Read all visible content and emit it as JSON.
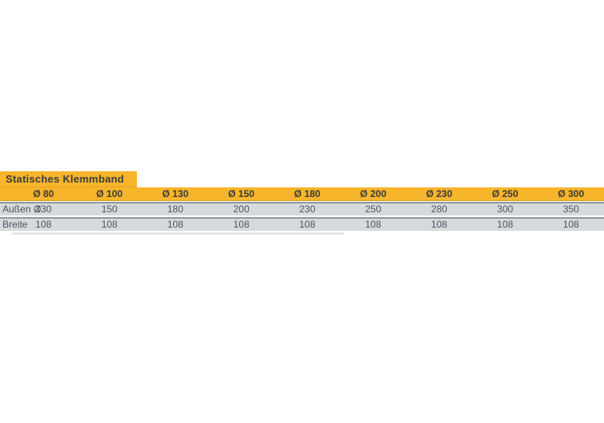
{
  "table": {
    "title": "Statisches Klemmband",
    "columns": [
      "Ø 80",
      "Ø 100",
      "Ø 130",
      "Ø 150",
      "Ø 180",
      "Ø 200",
      "Ø 230",
      "Ø 250",
      "Ø 300"
    ],
    "rows": [
      {
        "label": "Außen Ø",
        "values": [
          "130",
          "150",
          "180",
          "200",
          "230",
          "250",
          "280",
          "300",
          "350"
        ]
      },
      {
        "label": "Breite",
        "values": [
          "108",
          "108",
          "108",
          "108",
          "108",
          "108",
          "108",
          "108",
          "108"
        ]
      }
    ],
    "colors": {
      "accent_yellow": "#F7B52B",
      "accent_border": "#DCA01F",
      "row_fill": "#D5DADD",
      "row_border": "#8F979E",
      "title_text": "#3D3D3D",
      "row_text": "#4E565C"
    }
  },
  "chart_data": {
    "type": "table",
    "title": "Statisches Klemmband",
    "categories": [
      "Ø 80",
      "Ø 100",
      "Ø 130",
      "Ø 150",
      "Ø 180",
      "Ø 200",
      "Ø 230",
      "Ø 250",
      "Ø 300"
    ],
    "series": [
      {
        "name": "Außen Ø",
        "values": [
          130,
          150,
          180,
          200,
          230,
          250,
          280,
          300,
          350
        ]
      },
      {
        "name": "Breite",
        "values": [
          108,
          108,
          108,
          108,
          108,
          108,
          108,
          108,
          108
        ]
      }
    ]
  }
}
